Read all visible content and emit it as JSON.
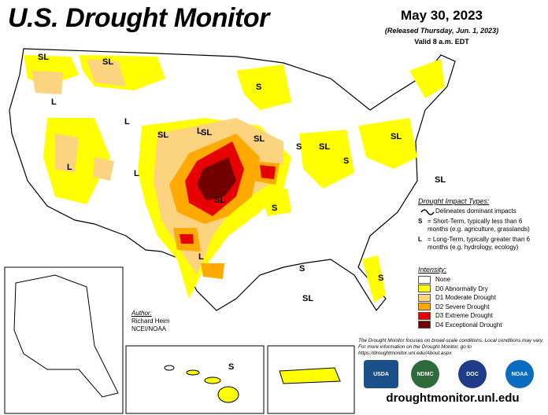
{
  "title": "U.S. Drought Monitor",
  "date": "May 30, 2023",
  "released": "(Released Thursday, Jun. 1, 2023)",
  "valid": "Valid 8 a.m. EDT",
  "impact": {
    "heading": "Drought Impact Types:",
    "line_label": "Delineates dominant impacts",
    "s_key": "S",
    "s_text": "= Short-Term, typically less than 6 months (e.g. agriculture, grasslands)",
    "l_key": "L",
    "l_text": "= Long-Term, typically greater than 6 months (e.g. hydrology, ecology)"
  },
  "intensity": {
    "heading": "Intensity:",
    "levels": [
      {
        "label": "None",
        "color": "#ffffff"
      },
      {
        "label": "D0 Abnormally Dry",
        "color": "#ffff00"
      },
      {
        "label": "D1 Moderate Drought",
        "color": "#fcd37f"
      },
      {
        "label": "D2 Severe Drought",
        "color": "#ffaa00"
      },
      {
        "label": "D3 Extreme Drought",
        "color": "#e60000"
      },
      {
        "label": "D4 Exceptional Drought",
        "color": "#730000"
      }
    ]
  },
  "author": {
    "heading": "Author:",
    "name": "Richard Heim",
    "org": "NCEI/NOAA"
  },
  "note": "The Drought Monitor focuses on broad-scale conditions. Local conditions may vary. For more information on the Drought Monitor, go to https://droughtmonitor.unl.edu/About.aspx",
  "url": "droughtmonitor.unl.edu",
  "logos": [
    "USDA",
    "NDMC",
    "DOC",
    "NOAA"
  ],
  "map_labels": [
    {
      "text": "SL"
    },
    {
      "text": "SL"
    },
    {
      "text": "L"
    },
    {
      "text": "L"
    },
    {
      "text": "SL"
    },
    {
      "text": "SL"
    },
    {
      "text": "L"
    },
    {
      "text": "SL"
    },
    {
      "text": "L"
    },
    {
      "text": "L"
    },
    {
      "text": "SL"
    },
    {
      "text": "S"
    },
    {
      "text": "S"
    },
    {
      "text": "S"
    },
    {
      "text": "SL"
    },
    {
      "text": "SL"
    },
    {
      "text": "S"
    },
    {
      "text": "SL"
    },
    {
      "text": "L"
    },
    {
      "text": "S"
    },
    {
      "text": "SL"
    },
    {
      "text": "S"
    },
    {
      "text": "S"
    }
  ]
}
